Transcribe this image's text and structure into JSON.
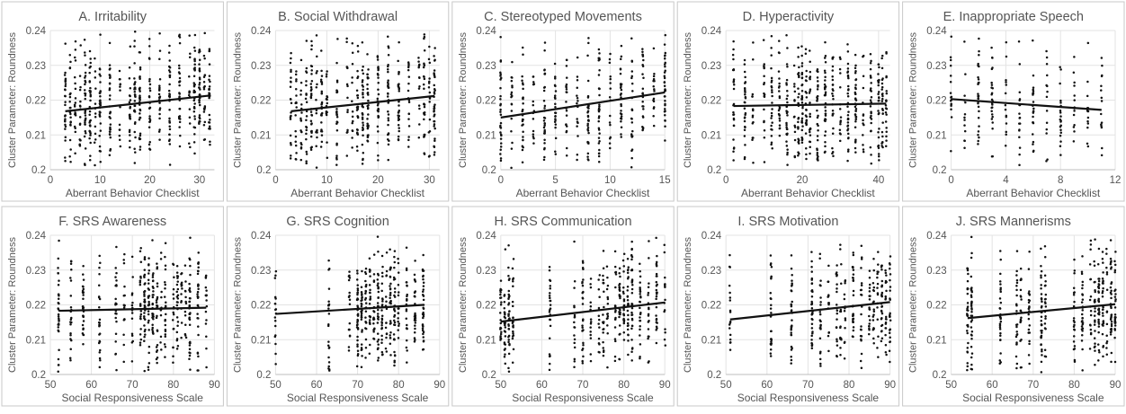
{
  "figure": {
    "ylabel": "Cluster Parameter: Roundness",
    "yticks": [
      "0.2",
      "0.21",
      "0.22",
      "0.23",
      "0.24"
    ]
  },
  "chart_data": [
    {
      "type": "scatter",
      "title": "A. Irritability",
      "xlabel": "Aberrant Behavior Checklist",
      "ylabel": "Cluster Parameter: Roundness",
      "xlim": [
        0,
        33
      ],
      "ylim": [
        0.2,
        0.24
      ],
      "xticks": [
        0,
        10,
        20,
        30
      ],
      "grid": true,
      "x_levels": [
        3,
        4,
        5,
        6,
        7,
        8,
        9,
        10,
        12,
        14,
        16,
        17,
        18,
        20,
        22,
        24,
        26,
        28,
        29,
        30,
        31,
        32
      ],
      "trend_line": {
        "x": [
          3,
          32
        ],
        "y": [
          0.2168,
          0.2213
        ]
      }
    },
    {
      "type": "scatter",
      "title": "B. Social Withdrawal",
      "xlabel": "Aberrant Behavior Checklist",
      "ylabel": "Cluster Parameter: Roundness",
      "xlim": [
        0,
        32
      ],
      "ylim": [
        0.2,
        0.24
      ],
      "xticks": [
        0,
        10,
        20,
        30
      ],
      "grid": true,
      "x_levels": [
        3,
        4,
        5,
        6,
        7,
        8,
        9,
        10,
        12,
        14,
        15,
        16,
        17,
        18,
        20,
        22,
        24,
        26,
        28,
        29,
        30,
        31
      ],
      "trend_line": {
        "x": [
          3,
          31
        ],
        "y": [
          0.2168,
          0.2212
        ]
      }
    },
    {
      "type": "scatter",
      "title": "C. Stereotyped Movements",
      "xlabel": "Aberrant Behavior Checklist",
      "ylabel": "Cluster Parameter: Roundness",
      "xlim": [
        0,
        15
      ],
      "ylim": [
        0.2,
        0.24
      ],
      "xticks": [
        0,
        5,
        10,
        15
      ],
      "grid": true,
      "x_levels": [
        0,
        1,
        2,
        3,
        4,
        5,
        6,
        7,
        8,
        9,
        10,
        11,
        12,
        13,
        14,
        15
      ],
      "trend_line": {
        "x": [
          0,
          15
        ],
        "y": [
          0.215,
          0.2222
        ]
      }
    },
    {
      "type": "scatter",
      "title": "D. Hyperactivity",
      "xlabel": "Aberrant Behavior Checklist",
      "ylabel": "Cluster Parameter: Roundness",
      "xlim": [
        0,
        43
      ],
      "ylim": [
        0.2,
        0.24
      ],
      "xticks": [
        0,
        20,
        40
      ],
      "grid": true,
      "x_levels": [
        2,
        5,
        7,
        10,
        12,
        14,
        16,
        18,
        19,
        20,
        21,
        22,
        24,
        26,
        28,
        30,
        32,
        34,
        36,
        38,
        40,
        41,
        42
      ],
      "trend_line": {
        "x": [
          2,
          42
        ],
        "y": [
          0.2183,
          0.219
        ]
      }
    },
    {
      "type": "scatter",
      "title": "E. Inappropriate Speech",
      "xlabel": "Aberrant Behavior Checklist",
      "ylabel": "Cluster Parameter: Roundness",
      "xlim": [
        0,
        12
      ],
      "ylim": [
        0.2,
        0.24
      ],
      "xticks": [
        0,
        4,
        8,
        12
      ],
      "grid": true,
      "x_levels": [
        0,
        1,
        2,
        3,
        4,
        5,
        6,
        7,
        8,
        9,
        10,
        11
      ],
      "trend_line": {
        "x": [
          0,
          11
        ],
        "y": [
          0.2203,
          0.2172
        ]
      }
    },
    {
      "type": "scatter",
      "title": "F. SRS Awareness",
      "xlabel": "Social Responsiveness Scale",
      "ylabel": "Cluster Parameter: Roundness",
      "xlim": [
        50,
        90
      ],
      "ylim": [
        0.2,
        0.24
      ],
      "xticks": [
        50,
        60,
        70,
        80,
        90
      ],
      "grid": true,
      "x_levels": [
        52,
        55,
        58,
        62,
        66,
        68,
        70,
        72,
        73,
        74,
        75,
        76,
        77,
        78,
        80,
        81,
        82,
        83,
        84,
        86,
        88
      ],
      "trend_line": {
        "x": [
          52,
          88
        ],
        "y": [
          0.2183,
          0.2192
        ]
      }
    },
    {
      "type": "scatter",
      "title": "G. SRS Cognition",
      "xlabel": "Social Responsiveness Scale",
      "ylabel": "Cluster Parameter: Roundness",
      "xlim": [
        50,
        90
      ],
      "ylim": [
        0.2,
        0.24
      ],
      "xticks": [
        50,
        60,
        70,
        80,
        90
      ],
      "grid": true,
      "x_levels": [
        50,
        63,
        68,
        70,
        71,
        72,
        73,
        74,
        75,
        76,
        77,
        78,
        79,
        80,
        82,
        84,
        86
      ],
      "trend_line": {
        "x": [
          50,
          86
        ],
        "y": [
          0.2174,
          0.22
        ]
      }
    },
    {
      "type": "scatter",
      "title": "H. SRS Communication",
      "xlabel": "Social Responsiveness Scale",
      "ylabel": "Cluster Parameter: Roundness",
      "xlim": [
        50,
        90
      ],
      "ylim": [
        0.2,
        0.24
      ],
      "xticks": [
        50,
        60,
        70,
        80,
        90
      ],
      "grid": true,
      "x_levels": [
        50,
        51,
        52,
        53,
        62,
        68,
        70,
        72,
        74,
        75,
        76,
        78,
        79,
        80,
        81,
        82,
        84,
        86,
        88,
        90
      ],
      "trend_line": {
        "x": [
          50,
          90
        ],
        "y": [
          0.2152,
          0.2207
        ]
      }
    },
    {
      "type": "scatter",
      "title": "I. SRS Motivation",
      "xlabel": "Social Responsiveness Scale",
      "ylabel": "Cluster Parameter: Roundness",
      "xlim": [
        50,
        90
      ],
      "ylim": [
        0.2,
        0.24
      ],
      "xticks": [
        50,
        60,
        70,
        80,
        90
      ],
      "grid": true,
      "x_levels": [
        51,
        61,
        66,
        71,
        73,
        75,
        77,
        78,
        79,
        81,
        83,
        85,
        86,
        87,
        88,
        89,
        90
      ],
      "trend_line": {
        "x": [
          51,
          90
        ],
        "y": [
          0.2158,
          0.2208
        ]
      }
    },
    {
      "type": "scatter",
      "title": "J. SRS Mannerisms",
      "xlabel": "Social Responsiveness Scale",
      "ylabel": "Cluster Parameter: Roundness",
      "xlim": [
        50,
        90
      ],
      "ylim": [
        0.2,
        0.24
      ],
      "xticks": [
        50,
        60,
        70,
        80,
        90
      ],
      "grid": true,
      "x_levels": [
        54,
        55,
        62,
        66,
        67,
        69,
        72,
        73,
        80,
        82,
        84,
        85,
        86,
        87,
        88,
        89,
        90
      ],
      "trend_line": {
        "x": [
          54,
          90
        ],
        "y": [
          0.2162,
          0.2202
        ]
      }
    }
  ]
}
